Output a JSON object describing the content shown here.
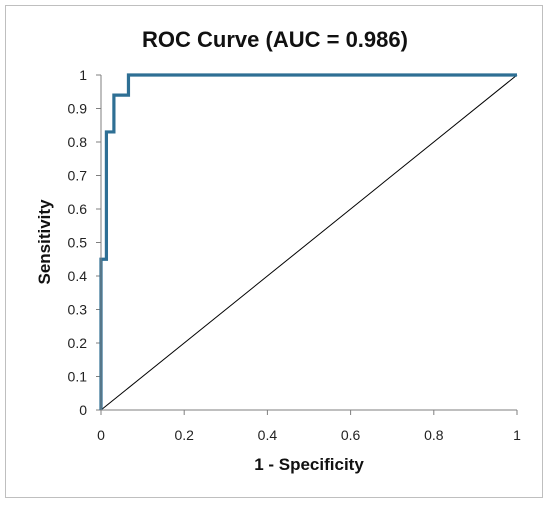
{
  "chart_data": {
    "type": "line",
    "title": "ROC Curve (AUC = 0.986)",
    "xlabel": "1 - Specificity",
    "ylabel": "Sensitivity",
    "xlim": [
      0,
      1
    ],
    "ylim": [
      0,
      1
    ],
    "x_ticks": [
      0,
      0.2,
      0.4,
      0.6,
      0.8,
      1
    ],
    "x_tick_labels": [
      "0",
      "0.2",
      "0.4",
      "0.6",
      "0.8",
      "1"
    ],
    "y_ticks": [
      0,
      0.1,
      0.2,
      0.3,
      0.4,
      0.5,
      0.6,
      0.7,
      0.8,
      0.9,
      1
    ],
    "y_tick_labels": [
      "0",
      "0.1",
      "0.2",
      "0.3",
      "0.4",
      "0.5",
      "0.6",
      "0.7",
      "0.8",
      "0.9",
      "1"
    ],
    "grid": false,
    "legend": "none",
    "series": [
      {
        "color": "#2e6f94",
        "x": [
          0,
          0,
          0.013,
          0.013,
          0.018,
          0.018,
          0.031,
          0.031,
          0.035,
          0.035,
          0.066,
          0.066,
          1
        ],
        "y": [
          0,
          0.45,
          0.45,
          0.83,
          0.83,
          0.83,
          0.83,
          0.94,
          0.94,
          0.94,
          0.94,
          1,
          1
        ]
      },
      {
        "color": "#000000",
        "x": [
          0,
          1
        ],
        "y": [
          0,
          1
        ]
      }
    ]
  }
}
